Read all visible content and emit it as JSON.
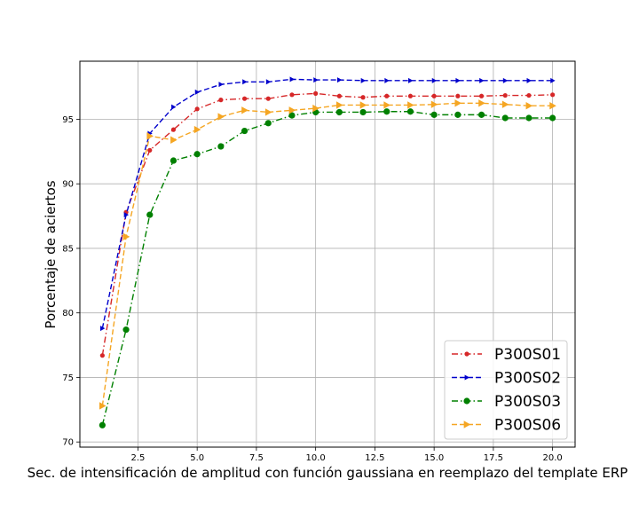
{
  "chart_data": {
    "type": "line",
    "xlabel": "Sec. de intensificación de amplitud con función gaussiana en reemplazo del template ERP",
    "ylabel": "Porcentaje de aciertos",
    "xlim": [
      0.05,
      20.95
    ],
    "ylim": [
      69.6,
      99.5
    ],
    "xticks": [
      2.5,
      5.0,
      7.5,
      10.0,
      12.5,
      15.0,
      17.5,
      20.0
    ],
    "xtick_labels": [
      "2.5",
      "5.0",
      "7.5",
      "10.0",
      "12.5",
      "15.0",
      "17.5",
      "20.0"
    ],
    "yticks": [
      70,
      75,
      80,
      85,
      90,
      95
    ],
    "ytick_labels": [
      "70",
      "75",
      "80",
      "85",
      "90",
      "95"
    ],
    "grid": true,
    "legend_position": "bottom-right",
    "x": [
      1,
      2,
      3,
      4,
      5,
      6,
      7,
      8,
      9,
      10,
      11,
      12,
      13,
      14,
      15,
      16,
      17,
      18,
      19,
      20
    ],
    "series": [
      {
        "name": "P300S01",
        "color": "#d62728",
        "dash": "dashdot",
        "marker": "circle-small",
        "values": [
          76.7,
          87.8,
          92.6,
          94.2,
          95.8,
          96.5,
          96.6,
          96.6,
          96.9,
          97.0,
          96.8,
          96.7,
          96.8,
          96.8,
          96.8,
          96.8,
          96.8,
          96.85,
          96.85,
          96.9
        ]
      },
      {
        "name": "P300S02",
        "color": "#0000cc",
        "dash": "dashed",
        "marker": "triangle-right-small",
        "values": [
          78.8,
          87.6,
          93.9,
          95.95,
          97.1,
          97.7,
          97.9,
          97.9,
          98.1,
          98.05,
          98.05,
          98.0,
          98.0,
          98.0,
          98.0,
          98.0,
          98.0,
          98.0,
          98.0,
          98.0
        ]
      },
      {
        "name": "P300S03",
        "color": "#008000",
        "dash": "dashdot",
        "marker": "circle",
        "values": [
          71.3,
          78.7,
          87.6,
          91.8,
          92.3,
          92.9,
          94.1,
          94.7,
          95.3,
          95.55,
          95.55,
          95.55,
          95.6,
          95.6,
          95.35,
          95.35,
          95.35,
          95.1,
          95.1,
          95.1
        ]
      },
      {
        "name": "P300S06",
        "color": "#f5a623",
        "dash": "dashed",
        "marker": "triangle-right",
        "values": [
          72.8,
          85.9,
          93.7,
          93.4,
          94.2,
          95.2,
          95.7,
          95.55,
          95.7,
          95.85,
          96.1,
          96.1,
          96.1,
          96.1,
          96.15,
          96.25,
          96.25,
          96.15,
          96.05,
          96.05
        ]
      }
    ]
  }
}
